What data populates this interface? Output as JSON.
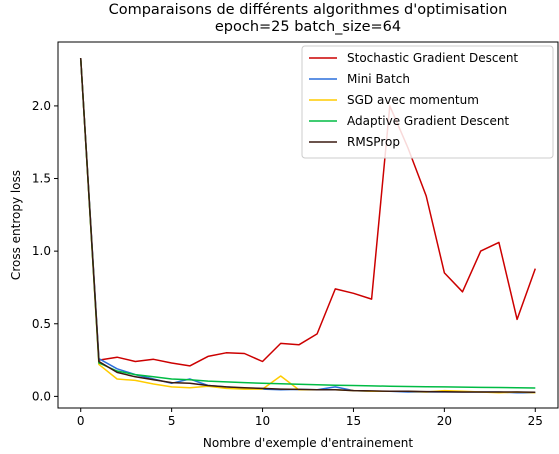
{
  "chart_data": {
    "type": "line",
    "title": "Comparaisons de différents algorithmes d'optimisation",
    "subtitle": "epoch=25 batch_size=64",
    "xlabel": "Nombre d'exemple d'entrainement",
    "ylabel": "Cross entropy loss",
    "xlim": [
      -1.25,
      26.25
    ],
    "ylim": [
      -0.08,
      2.44
    ],
    "xticks": [
      0,
      5,
      10,
      15,
      20,
      25
    ],
    "xtick_labels": [
      "0",
      "5",
      "10",
      "15",
      "20",
      "25"
    ],
    "yticks": [
      0.0,
      0.5,
      1.0,
      1.5,
      2.0
    ],
    "ytick_labels": [
      "0.0",
      "0.5",
      "1.0",
      "1.5",
      "2.0"
    ],
    "grid": false,
    "legend_position": "top-right",
    "x": [
      0,
      1,
      2,
      3,
      4,
      5,
      6,
      7,
      8,
      9,
      10,
      11,
      12,
      13,
      14,
      15,
      16,
      17,
      18,
      19,
      20,
      21,
      22,
      23,
      24,
      25
    ],
    "series": [
      {
        "name": "Stochastic Gradient Descent",
        "color": "#cc0000",
        "values": [
          2.33,
          0.25,
          0.27,
          0.24,
          0.255,
          0.23,
          0.21,
          0.275,
          0.3,
          0.295,
          0.24,
          0.365,
          0.355,
          0.43,
          0.74,
          0.71,
          0.67,
          2.0,
          1.71,
          1.38,
          0.85,
          0.72,
          1.0,
          1.06,
          0.53,
          0.88
        ]
      },
      {
        "name": "Mini Batch",
        "color": "#2a6fdb",
        "values": [
          2.33,
          0.26,
          0.19,
          0.15,
          0.12,
          0.09,
          0.12,
          0.075,
          0.065,
          0.055,
          0.05,
          0.045,
          0.048,
          0.045,
          0.065,
          0.04,
          0.035,
          0.035,
          0.03,
          0.03,
          0.03,
          0.03,
          0.03,
          0.03,
          0.025,
          0.025
        ]
      },
      {
        "name": "SGD avec momentum",
        "color": "#ffcc00",
        "values": [
          2.33,
          0.22,
          0.12,
          0.11,
          0.085,
          0.065,
          0.06,
          0.07,
          0.055,
          0.05,
          0.05,
          0.14,
          0.045,
          0.045,
          0.045,
          0.04,
          0.035,
          0.035,
          0.035,
          0.03,
          0.04,
          0.035,
          0.03,
          0.025,
          0.03,
          0.025
        ]
      },
      {
        "name": "Adaptive Gradient Descent",
        "color": "#00bb44",
        "values": [
          2.33,
          0.23,
          0.175,
          0.15,
          0.135,
          0.12,
          0.115,
          0.105,
          0.1,
          0.095,
          0.09,
          0.087,
          0.083,
          0.08,
          0.077,
          0.075,
          0.072,
          0.07,
          0.068,
          0.066,
          0.065,
          0.064,
          0.062,
          0.061,
          0.06,
          0.058
        ]
      },
      {
        "name": "RMSProp",
        "color": "#3a1a10",
        "values": [
          2.33,
          0.24,
          0.165,
          0.135,
          0.115,
          0.095,
          0.09,
          0.075,
          0.065,
          0.06,
          0.055,
          0.05,
          0.048,
          0.045,
          0.045,
          0.04,
          0.038,
          0.035,
          0.035,
          0.033,
          0.032,
          0.03,
          0.03,
          0.03,
          0.03,
          0.028
        ]
      }
    ]
  }
}
